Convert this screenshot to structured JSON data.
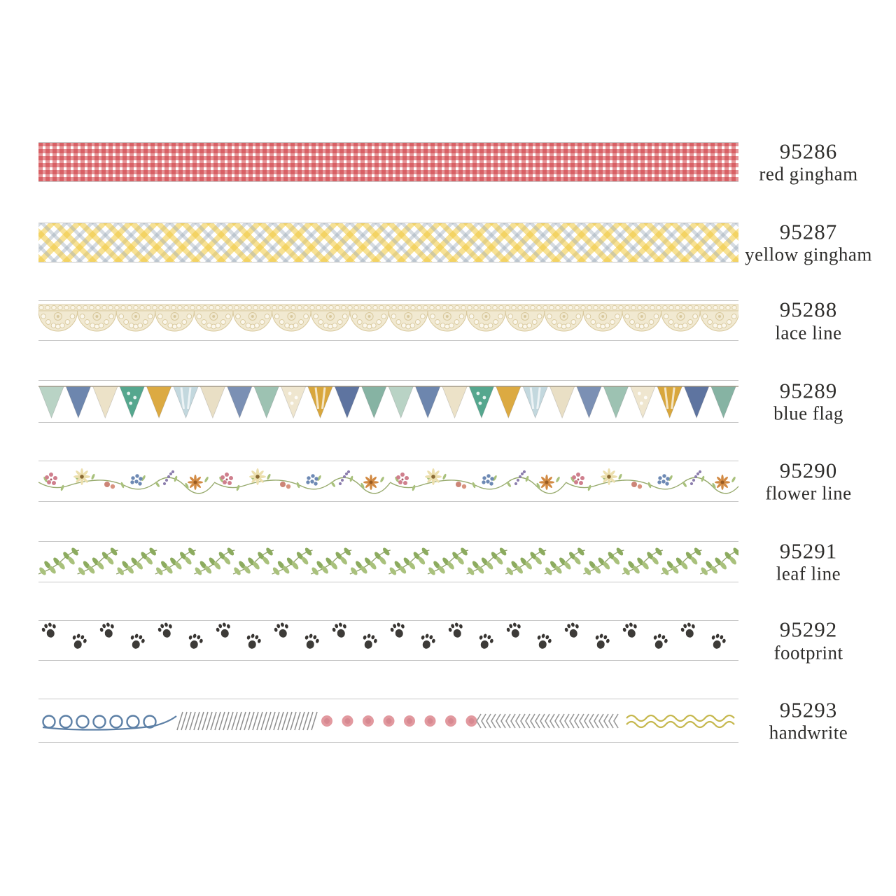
{
  "page": {
    "background": "#ffffff"
  },
  "items": [
    {
      "code": "95286",
      "name": "red gingham",
      "pattern": "red-gingham"
    },
    {
      "code": "95287",
      "name": "yellow gingham",
      "pattern": "yellow-gingham"
    },
    {
      "code": "95288",
      "name": "lace line",
      "pattern": "lace"
    },
    {
      "code": "95289",
      "name": "blue flag",
      "pattern": "flags"
    },
    {
      "code": "95290",
      "name": "flower line",
      "pattern": "flower"
    },
    {
      "code": "95291",
      "name": "leaf line",
      "pattern": "leaf"
    },
    {
      "code": "95292",
      "name": "footprint",
      "pattern": "paw"
    },
    {
      "code": "95293",
      "name": "handwrite",
      "pattern": "handwrite"
    }
  ],
  "colors": {
    "text": "#2e2d2b",
    "tape_border": "#c6c6c6",
    "red_gingham": "#cb2c32",
    "yellow_gingham_yellow": "#f0c83c",
    "yellow_gingham_gray": "#96a5b4",
    "lace": "#d8c89c",
    "lace_fill": "#f1e9d1",
    "flag_string": "#a59a86",
    "flag_palette": [
      "#b9d3c5",
      "#6d86ae",
      "#ece2c8",
      "#55a78e",
      "#dcaa42",
      "#c3d8de",
      "#e9dfc5",
      "#7b90b4",
      "#9dc2b2",
      "#efe6cf",
      "#d9a73c",
      "#5e74a0",
      "#86b3a3"
    ],
    "stem_green": "#97aa6d",
    "leaf_green": "#8cab5f",
    "leaf_green_light": "#a9c17c",
    "paw_black": "#2d2a27",
    "hand_blue": "#5d80a6",
    "hand_gray": "#8e8e8e",
    "hand_chevron": "#979797",
    "hand_pink": "#df8e95",
    "hand_wave": "#c6b84e",
    "flower_pink": "#cf7f8d",
    "flower_blue": "#6d89b4",
    "flower_purple": "#8d7fae",
    "flower_orange": "#d28a43",
    "flower_cream": "#ecdfae"
  }
}
